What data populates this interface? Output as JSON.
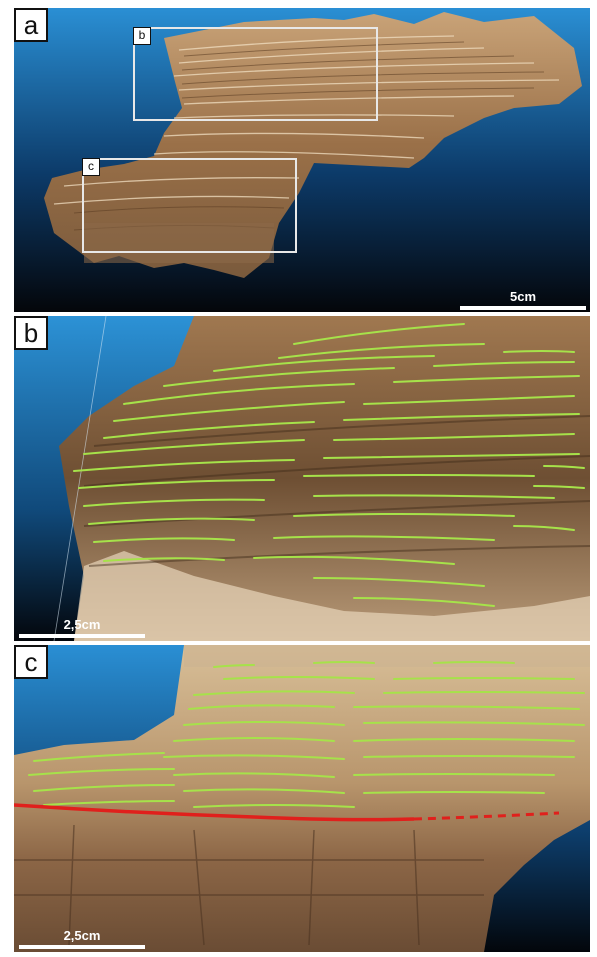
{
  "panels": {
    "a": {
      "label": "a",
      "scale_label": "5cm",
      "inset_b_label": "b",
      "inset_c_label": "c"
    },
    "b": {
      "label": "b",
      "scale_label": "2,5cm"
    },
    "c": {
      "label": "c",
      "scale_label": "2,5cm"
    }
  },
  "colors": {
    "sky_top": "#2a8fd4",
    "sky_bottom": "#05070c",
    "rock_light": "#d9b98e",
    "rock_dark": "#6b4a2c",
    "lamina_trace": "#a6e24a",
    "contact_trace": "#e0201c"
  }
}
